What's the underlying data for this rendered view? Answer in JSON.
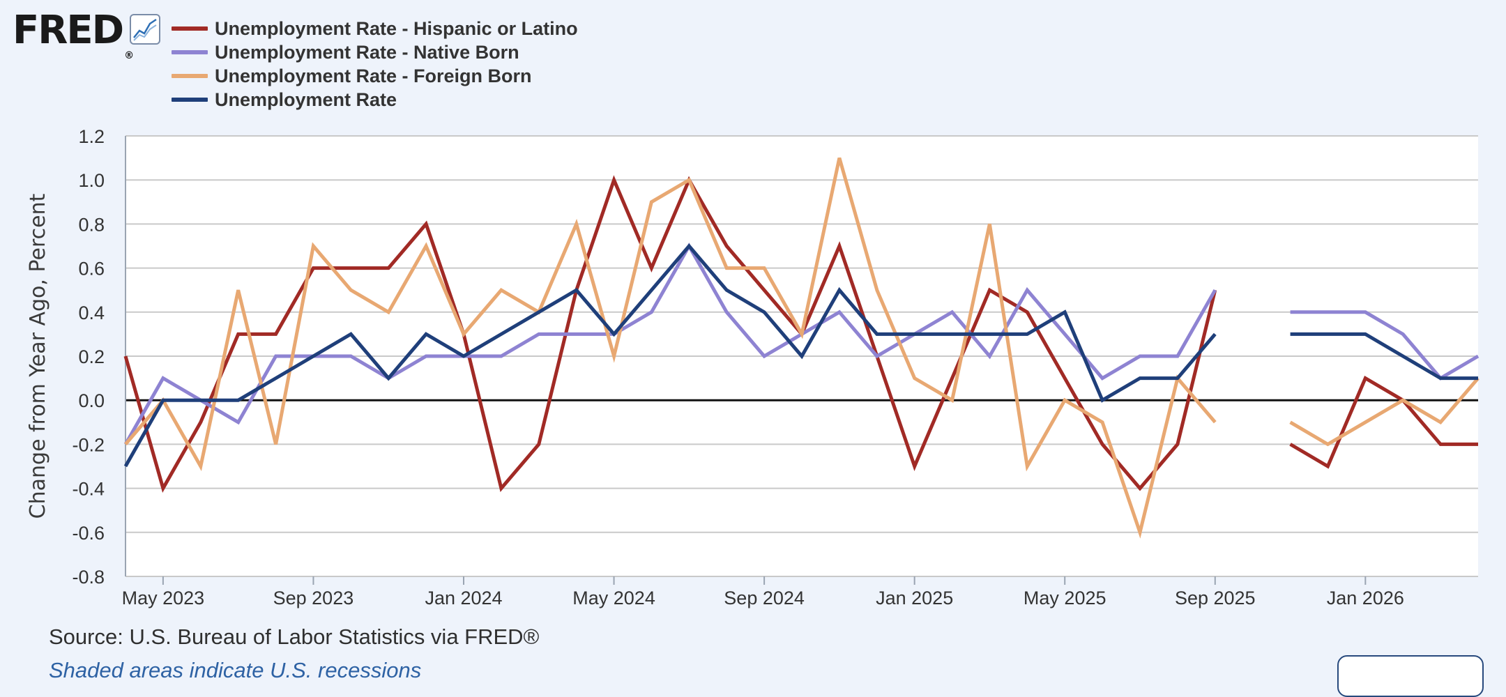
{
  "brand": {
    "logo_text": "FRED",
    "registered_mark": "®",
    "logo_icon": "line-chart-icon"
  },
  "chart_data": {
    "type": "line",
    "ylabel": "Change from Year Ago, Percent",
    "ylim": [
      -0.8,
      1.2
    ],
    "yticks": [
      -0.8,
      -0.6,
      -0.4,
      -0.2,
      0.0,
      0.2,
      0.4,
      0.6,
      0.8,
      1.0,
      1.2
    ],
    "x": [
      "2023-04",
      "2023-05",
      "2023-06",
      "2023-07",
      "2023-08",
      "2023-09",
      "2023-10",
      "2023-11",
      "2023-12",
      "2024-01",
      "2024-02",
      "2024-03",
      "2024-04",
      "2024-05",
      "2024-06",
      "2024-07",
      "2024-08",
      "2024-09",
      "2024-10",
      "2024-11",
      "2024-12",
      "2025-01",
      "2025-02",
      "2025-03",
      "2025-04",
      "2025-05",
      "2025-06",
      "2025-07",
      "2025-08",
      "2025-09",
      "2025-10",
      "2025-11",
      "2025-12",
      "2026-01",
      "2026-02",
      "2026-03",
      "2026-04"
    ],
    "xlim": [
      "2023-04",
      "2026-04"
    ],
    "xticks": [
      {
        "date": "2023-05",
        "label": "May 2023"
      },
      {
        "date": "2023-09",
        "label": "Sep 2023"
      },
      {
        "date": "2024-01",
        "label": "Jan 2024"
      },
      {
        "date": "2024-05",
        "label": "May 2024"
      },
      {
        "date": "2024-09",
        "label": "Sep 2024"
      },
      {
        "date": "2025-01",
        "label": "Jan 2025"
      },
      {
        "date": "2025-05",
        "label": "May 2025"
      },
      {
        "date": "2025-09",
        "label": "Sep 2025"
      },
      {
        "date": "2026-01",
        "label": "Jan 2026"
      }
    ],
    "grid": true,
    "legend_position": "top-left",
    "series": [
      {
        "name": "Unemployment Rate - Hispanic or Latino",
        "color": "#a12a25",
        "values": [
          0.2,
          -0.4,
          -0.1,
          0.3,
          0.3,
          0.6,
          0.6,
          0.6,
          0.8,
          0.3,
          -0.4,
          -0.2,
          0.5,
          1.0,
          0.6,
          1.0,
          0.7,
          0.5,
          0.3,
          0.7,
          0.2,
          -0.3,
          0.1,
          0.5,
          0.4,
          0.1,
          -0.2,
          -0.4,
          -0.2,
          0.5,
          null,
          -0.2,
          -0.3,
          0.1,
          0.0,
          -0.2,
          -0.2
        ]
      },
      {
        "name": "Unemployment Rate - Native Born",
        "color": "#8e83d2",
        "values": [
          -0.2,
          0.1,
          0.0,
          -0.1,
          0.2,
          0.2,
          0.2,
          0.1,
          0.2,
          0.2,
          0.2,
          0.3,
          0.3,
          0.3,
          0.4,
          0.7,
          0.4,
          0.2,
          0.3,
          0.4,
          0.2,
          0.3,
          0.4,
          0.2,
          0.5,
          0.3,
          0.1,
          0.2,
          0.2,
          0.5,
          null,
          0.4,
          0.4,
          0.4,
          0.3,
          0.1,
          0.2
        ]
      },
      {
        "name": "Unemployment Rate - Foreign Born",
        "color": "#e8a872",
        "values": [
          -0.2,
          0.0,
          -0.3,
          0.5,
          -0.2,
          0.7,
          0.5,
          0.4,
          0.7,
          0.3,
          0.5,
          0.4,
          0.8,
          0.2,
          0.9,
          1.0,
          0.6,
          0.6,
          0.3,
          1.1,
          0.5,
          0.1,
          0.0,
          0.8,
          -0.3,
          0.0,
          -0.1,
          -0.6,
          0.1,
          -0.1,
          null,
          -0.1,
          -0.2,
          -0.1,
          0.0,
          -0.1,
          0.1
        ]
      },
      {
        "name": "Unemployment Rate",
        "color": "#1f3f7a",
        "values": [
          -0.3,
          0.0,
          0.0,
          0.0,
          0.1,
          0.2,
          0.3,
          0.1,
          0.3,
          0.2,
          0.3,
          0.4,
          0.5,
          0.3,
          0.5,
          0.7,
          0.5,
          0.4,
          0.2,
          0.5,
          0.3,
          0.3,
          0.3,
          0.3,
          0.3,
          0.4,
          0.0,
          0.1,
          0.1,
          0.3,
          null,
          0.3,
          0.3,
          0.3,
          0.2,
          0.1,
          0.1
        ]
      }
    ]
  },
  "footer": {
    "source": "Source: U.S. Bureau of Labor Statistics via FRED®",
    "recession_note": "Shaded areas indicate U.S. recessions",
    "fullscreen_icon": "fullscreen-icon"
  }
}
